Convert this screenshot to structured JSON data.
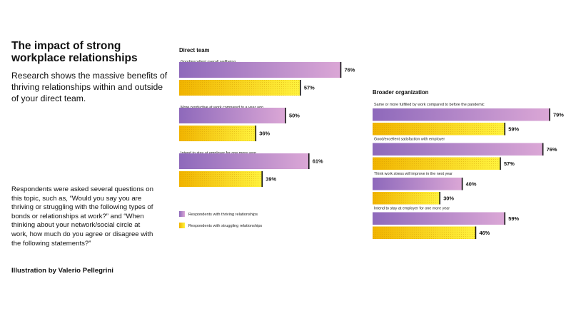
{
  "text": {
    "title": "The impact of strong workplace relationships",
    "subtitle": "Research shows the massive benefits of thriving relationships within and outside of your direct team.",
    "note": "Respondents were asked several questions on this topic, such as, “Would you say you are thriving or struggling with the following types of bonds or relationships at work?” and “When thinking about your network/social circle at work, how much do you agree or disagree with the following statements?”",
    "credit": "Illustration by Valerio Pellegrini"
  },
  "colors": {
    "thriving_start": "#8e69bb",
    "thriving_end": "#dba7d6",
    "struggling_start": "#f1b400",
    "struggling_end": "#fff33e",
    "marker": "#111111"
  },
  "chart_data": [
    {
      "type": "bar",
      "title": "Direct team",
      "unit": "%",
      "xlim": [
        0,
        100
      ],
      "categories": [
        "Good/excellent overall wellbeing",
        "More productive at work compared to a year ago",
        "Intend to stay at employer for one more year"
      ],
      "series": [
        {
          "name": "Respondents with thriving relationships",
          "values": [
            76,
            50,
            61
          ]
        },
        {
          "name": "Respondents with struggling relationships",
          "values": [
            57,
            36,
            39
          ]
        }
      ]
    },
    {
      "type": "bar",
      "title": "Broader organization",
      "unit": "%",
      "xlim": [
        0,
        100
      ],
      "categories": [
        "Same or more fulfilled by work compared to before the pandemic",
        "Good/excellent satisfaction with employer",
        "Think work stress will improve in the next year",
        "Intend to stay at employer for one more year"
      ],
      "series": [
        {
          "name": "Respondents with thriving relationships",
          "values": [
            79,
            76,
            40,
            59
          ]
        },
        {
          "name": "Respondents with struggling relationships",
          "values": [
            59,
            57,
            30,
            46
          ]
        }
      ]
    }
  ],
  "legend": {
    "placement": "bottom-left of direct team chart",
    "items": [
      "Respondents with thriving relationships",
      "Respondents with struggling relationships"
    ]
  }
}
